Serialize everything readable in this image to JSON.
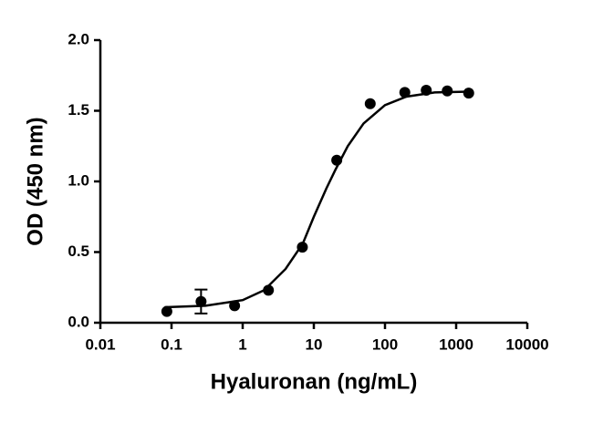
{
  "chart_data": {
    "type": "scatter",
    "xlabel": "Hyaluronan (ng/mL)",
    "ylabel": "OD (450 nm)",
    "xscale": "log",
    "xlim": [
      0.01,
      10000
    ],
    "xticks": [
      0.01,
      0.1,
      1,
      10,
      100,
      1000,
      10000
    ],
    "ylim": [
      0,
      2
    ],
    "yticks": [
      {
        "value": 0,
        "label": "0.0"
      },
      {
        "value": 0.5,
        "label": "0.5"
      },
      {
        "value": 1,
        "label": "1.0"
      },
      {
        "value": 1.5,
        "label": "1.5"
      },
      {
        "value": 2,
        "label": "2.0"
      }
    ],
    "series": [
      {
        "kind": "points",
        "color": "#000000",
        "x": [
          0.086,
          0.26,
          0.77,
          2.3,
          6.9,
          21,
          62,
          190,
          380,
          750,
          1500
        ],
        "values": [
          0.08,
          0.15,
          0.12,
          0.23,
          0.535,
          1.15,
          1.55,
          1.63,
          1.645,
          1.64,
          1.625
        ],
        "errors": [
          null,
          0.085,
          null,
          null,
          null,
          null,
          null,
          null,
          null,
          null,
          null
        ]
      },
      {
        "kind": "curve",
        "color": "#000000",
        "x": [
          0.08,
          0.3,
          1,
          2,
          4,
          7,
          10,
          15,
          20,
          30,
          50,
          100,
          200,
          500,
          1500
        ],
        "values": [
          0.11,
          0.12,
          0.16,
          0.23,
          0.38,
          0.56,
          0.75,
          0.95,
          1.08,
          1.25,
          1.41,
          1.54,
          1.6,
          1.63,
          1.635
        ]
      }
    ]
  }
}
